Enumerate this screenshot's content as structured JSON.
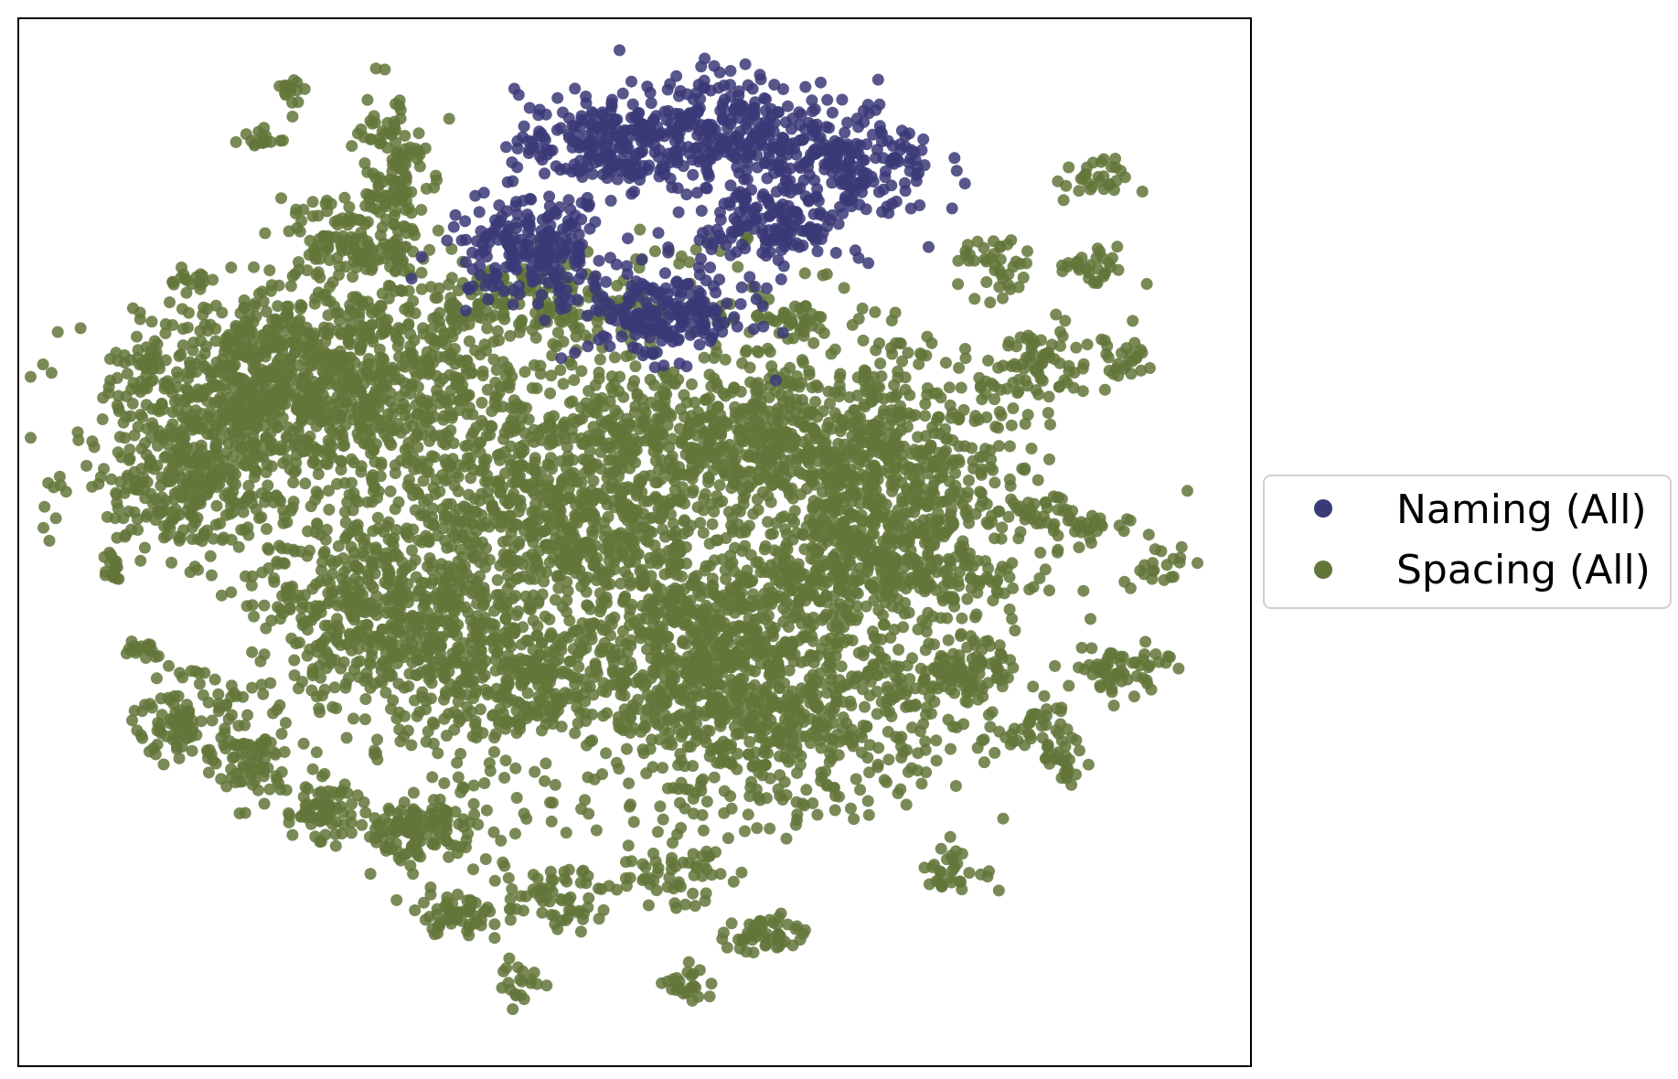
{
  "chart_data": {
    "type": "scatter",
    "title": "",
    "xlabel": "",
    "ylabel": "",
    "xlim": [
      -100,
      100
    ],
    "ylim": [
      -100,
      100
    ],
    "axis_ticks": "hidden",
    "grid": false,
    "legend_position": "right",
    "series": [
      {
        "name": "Naming (All)",
        "color": "#3b3a78",
        "clusters": [
          {
            "x": -5,
            "y": 76,
            "sx": 7,
            "sy": 5,
            "n": 230
          },
          {
            "x": 14,
            "y": 80,
            "sx": 6,
            "sy": 5,
            "n": 200
          },
          {
            "x": 33,
            "y": 72,
            "sx": 8,
            "sy": 6,
            "n": 260
          },
          {
            "x": -17,
            "y": 56,
            "sx": 7,
            "sy": 5,
            "n": 220
          },
          {
            "x": 5,
            "y": 43,
            "sx": 7,
            "sy": 4,
            "n": 200
          },
          {
            "x": 22,
            "y": 60,
            "sx": 6,
            "sy": 4,
            "n": 130
          }
        ]
      },
      {
        "name": "Spacing (All)",
        "color": "#637639",
        "clusters": [
          {
            "x": -48,
            "y": 30,
            "sx": 16,
            "sy": 10,
            "n": 900
          },
          {
            "x": -72,
            "y": 11,
            "sx": 9,
            "sy": 7,
            "n": 320
          },
          {
            "x": -67,
            "y": 27,
            "sx": 7,
            "sy": 5,
            "n": 180
          },
          {
            "x": -40,
            "y": -13,
            "sx": 11,
            "sy": 9,
            "n": 520
          },
          {
            "x": -13,
            "y": 4,
            "sx": 12,
            "sy": 8,
            "n": 520
          },
          {
            "x": 5,
            "y": 20,
            "sx": 16,
            "sy": 6,
            "n": 400
          },
          {
            "x": 34,
            "y": 18,
            "sx": 13,
            "sy": 9,
            "n": 520
          },
          {
            "x": 41,
            "y": 3,
            "sx": 9,
            "sy": 8,
            "n": 320
          },
          {
            "x": 10,
            "y": -17,
            "sx": 11,
            "sy": 9,
            "n": 480
          },
          {
            "x": 24,
            "y": -32,
            "sx": 15,
            "sy": 10,
            "n": 650
          },
          {
            "x": -20,
            "y": -26,
            "sx": 10,
            "sy": 6,
            "n": 280
          },
          {
            "x": -40,
            "y": 70,
            "sx": 3,
            "sy": 9,
            "n": 140
          },
          {
            "x": -44,
            "y": 55,
            "sx": 5,
            "sy": 3,
            "n": 80
          },
          {
            "x": -73,
            "y": -34,
            "sx": 4,
            "sy": 4,
            "n": 110
          },
          {
            "x": -62,
            "y": -42,
            "sx": 3,
            "sy": 4,
            "n": 70
          },
          {
            "x": -51,
            "y": -51,
            "sx": 3,
            "sy": 3,
            "n": 70
          },
          {
            "x": -35,
            "y": -55,
            "sx": 6,
            "sy": 3,
            "n": 140
          },
          {
            "x": -29,
            "y": -71,
            "sx": 4,
            "sy": 2,
            "n": 60
          },
          {
            "x": -13,
            "y": -68,
            "sx": 4,
            "sy": 3,
            "n": 60
          },
          {
            "x": 5,
            "y": -63,
            "sx": 5,
            "sy": 3,
            "n": 60
          },
          {
            "x": 21,
            "y": -75,
            "sx": 3,
            "sy": 2,
            "n": 50
          },
          {
            "x": 9,
            "y": -84,
            "sx": 2,
            "sy": 2,
            "n": 25
          },
          {
            "x": -18,
            "y": -84,
            "sx": 2,
            "sy": 2,
            "n": 20
          },
          {
            "x": 54,
            "y": -24,
            "sx": 4,
            "sy": 3,
            "n": 80
          },
          {
            "x": 65,
            "y": -35,
            "sx": 3,
            "sy": 3,
            "n": 40
          },
          {
            "x": 70,
            "y": -42,
            "sx": 2,
            "sy": 2,
            "n": 25
          },
          {
            "x": 52,
            "y": -63,
            "sx": 3,
            "sy": 2,
            "n": 30
          },
          {
            "x": 77,
            "y": -24,
            "sx": 3,
            "sy": 2,
            "n": 40
          },
          {
            "x": 65,
            "y": 34,
            "sx": 4,
            "sy": 4,
            "n": 70
          },
          {
            "x": 59,
            "y": 52,
            "sx": 3,
            "sy": 3,
            "n": 40
          },
          {
            "x": 74,
            "y": 52,
            "sx": 3,
            "sy": 2,
            "n": 30
          },
          {
            "x": 79,
            "y": 35,
            "sx": 3,
            "sy": 3,
            "n": 30
          },
          {
            "x": 66,
            "y": 6,
            "sx": 3,
            "sy": 2,
            "n": 30
          },
          {
            "x": 72,
            "y": 2,
            "sx": 4,
            "sy": 2,
            "n": 30
          },
          {
            "x": 74,
            "y": 69,
            "sx": 3,
            "sy": 2,
            "n": 30
          },
          {
            "x": -62,
            "y": 39,
            "sx": 4,
            "sy": 3,
            "n": 50
          },
          {
            "x": -79,
            "y": 35,
            "sx": 2,
            "sy": 2,
            "n": 30
          },
          {
            "x": -50,
            "y": 62,
            "sx": 3,
            "sy": 2,
            "n": 30
          },
          {
            "x": -72,
            "y": 50,
            "sx": 2,
            "sy": 1,
            "n": 15
          },
          {
            "x": -61,
            "y": 77,
            "sx": 2,
            "sy": 1,
            "n": 15
          },
          {
            "x": -55,
            "y": 86,
            "sx": 1,
            "sy": 2,
            "n": 15
          },
          {
            "x": -85,
            "y": -5,
            "sx": 1,
            "sy": 2,
            "n": 15
          },
          {
            "x": -80,
            "y": -20,
            "sx": 2,
            "sy": 1,
            "n": 15
          },
          {
            "x": 40,
            "y": -6,
            "sx": 12,
            "sy": 4,
            "n": 180
          },
          {
            "x": 26,
            "y": 42,
            "sx": 3,
            "sy": 2,
            "n": 30
          },
          {
            "x": 85,
            "y": -4,
            "sx": 3,
            "sy": 2,
            "n": 20
          },
          {
            "x": 83,
            "y": -24,
            "sx": 2,
            "sy": 3,
            "n": 20
          },
          {
            "x": -15,
            "y": 45,
            "sx": 14,
            "sy": 3,
            "n": 180
          }
        ],
        "scattered_points": 650
      }
    ]
  }
}
